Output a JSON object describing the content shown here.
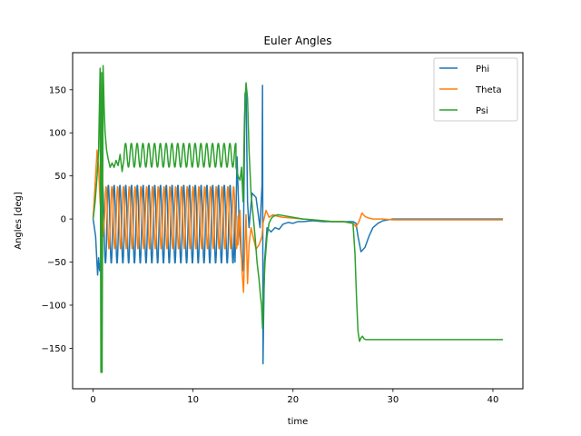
{
  "chart_data": {
    "type": "line",
    "title": "Euler Angles",
    "xlabel": "time",
    "ylabel": "Angles [deg]",
    "xlim": [
      -2.05,
      43.0
    ],
    "ylim": [
      -197,
      193
    ],
    "xticks": [
      0,
      10,
      20,
      30,
      40
    ],
    "yticks": [
      -150,
      -100,
      -50,
      0,
      50,
      100,
      150
    ],
    "xtick_labels": [
      "0",
      "10",
      "20",
      "30",
      "40"
    ],
    "ytick_labels": [
      "−150",
      "−100",
      "−50",
      "0",
      "50",
      "100",
      "150"
    ],
    "grid": false,
    "legend": "top-right",
    "series": [
      {
        "name": "Phi",
        "color": "#1f77b4",
        "segments": [
          {
            "kind": "points",
            "x": [
              0,
              0.25,
              0.45,
              0.55,
              0.65,
              0.8
            ],
            "y": [
              0,
              -20,
              -65,
              -45,
              -60,
              -45
            ]
          },
          {
            "kind": "osc",
            "x0": 0.8,
            "x1": 14.2,
            "period": 0.58,
            "phase": 0,
            "lo": -52,
            "hi": 40,
            "steps": 14
          },
          {
            "kind": "points",
            "x": [
              14.2,
              14.4,
              14.6,
              14.8,
              15.0,
              15.1,
              15.2,
              15.3,
              15.45,
              15.6,
              15.9,
              16.3,
              16.7,
              16.9,
              16.95,
              17.0,
              17.05,
              17.15,
              17.4,
              17.8,
              18.2,
              18.6,
              19.0,
              19.5,
              20.0,
              20.5,
              21.0,
              22.0,
              23.0,
              24.0,
              25.0,
              26.0,
              26.3,
              26.5,
              26.8,
              27.2,
              27.6,
              28.0,
              28.5,
              29.0,
              29.5,
              30.0,
              32.0,
              35.0,
              38.0,
              41.0
            ],
            "y": [
              -50,
              72,
              0,
              -40,
              -60,
              40,
              145,
              150,
              20,
              -10,
              30,
              25,
              -10,
              40,
              155,
              -168,
              -120,
              -50,
              -10,
              -15,
              -10,
              -12,
              -6,
              -4,
              -5,
              -3,
              -3,
              -2,
              -3,
              -3,
              -3,
              -3,
              -5,
              -20,
              -38,
              -33,
              -20,
              -10,
              -5,
              -2,
              -1,
              0,
              0,
              0,
              0,
              0
            ]
          }
        ]
      },
      {
        "name": "Theta",
        "color": "#ff7f0e",
        "segments": [
          {
            "kind": "points",
            "x": [
              0,
              0.2,
              0.4,
              0.55,
              0.7,
              0.85,
              1.0,
              1.2
            ],
            "y": [
              0,
              40,
              80,
              60,
              20,
              0,
              -20,
              10
            ]
          },
          {
            "kind": "osc",
            "x0": 1.2,
            "x1": 14.5,
            "period": 0.58,
            "phase": 0.5,
            "lo": -35,
            "hi": 38,
            "steps": 14
          },
          {
            "kind": "points",
            "x": [
              14.5,
              14.7,
              14.9,
              15.05,
              15.15,
              15.3,
              15.45,
              15.6,
              15.8,
              16.0,
              16.3,
              16.6,
              16.9,
              17.0,
              17.1,
              17.3,
              17.6,
              18.0,
              18.5,
              19.0,
              20.0,
              21.0,
              22.0,
              23.0,
              24.0,
              25.0,
              26.0,
              26.3,
              26.6,
              26.9,
              27.2,
              27.6,
              28.0,
              29.0,
              30.0,
              33.0,
              36.0,
              41.0
            ],
            "y": [
              -30,
              10,
              -60,
              -85,
              -40,
              5,
              -75,
              -30,
              -10,
              -20,
              -35,
              -30,
              -20,
              -5,
              0,
              10,
              2,
              5,
              3,
              2,
              1,
              0,
              -1,
              -2,
              -3,
              -3,
              -5,
              -9,
              -3,
              7,
              3,
              1,
              0,
              0,
              -1,
              -1,
              -1,
              -1
            ]
          }
        ]
      },
      {
        "name": "Psi",
        "color": "#2ca02c",
        "segments": [
          {
            "kind": "points",
            "x": [
              0,
              0.2,
              0.4,
              0.55,
              0.7,
              0.78,
              0.85,
              0.9,
              1.0,
              1.05,
              1.1,
              1.2,
              1.35,
              1.5,
              1.7,
              1.9,
              2.1,
              2.3,
              2.5,
              2.7,
              2.9,
              3.1
            ],
            "y": [
              0,
              20,
              50,
              80,
              175,
              -178,
              170,
              -178,
              178,
              155,
              130,
              100,
              80,
              70,
              60,
              65,
              60,
              68,
              62,
              75,
              55,
              70
            ]
          },
          {
            "kind": "osc",
            "x0": 3.1,
            "x1": 14.3,
            "period": 0.58,
            "phase": 0,
            "lo": 60,
            "hi": 88,
            "steps": 14
          },
          {
            "kind": "points",
            "x": [
              14.3,
              14.5,
              14.7,
              14.85,
              15.0,
              15.15,
              15.3,
              15.45,
              15.6,
              15.8,
              16.0,
              16.2,
              16.4,
              16.6,
              16.75,
              16.85,
              16.95,
              17.05,
              17.2,
              17.4,
              17.6,
              17.8,
              18.0,
              18.5,
              19.0,
              20.0,
              21.0,
              22.0,
              23.0,
              24.0,
              25.0,
              26.0,
              26.2,
              26.35,
              26.5,
              26.65,
              26.8,
              26.95,
              27.1,
              27.3,
              27.6,
              28.0,
              29.0,
              30.0,
              32.0,
              35.0,
              38.0,
              41.0
            ],
            "y": [
              60,
              50,
              45,
              60,
              20,
              120,
              158,
              140,
              80,
              30,
              5,
              -20,
              -50,
              -70,
              -90,
              -100,
              -127,
              -90,
              -50,
              -20,
              -5,
              0,
              3,
              5,
              4,
              2,
              0,
              -1,
              -2,
              -3,
              -3,
              -5,
              -40,
              -90,
              -130,
              -142,
              -138,
              -136,
              -139,
              -140,
              -140,
              -140,
              -140,
              -140,
              -140,
              -140,
              -140,
              -140
            ]
          }
        ]
      }
    ]
  }
}
